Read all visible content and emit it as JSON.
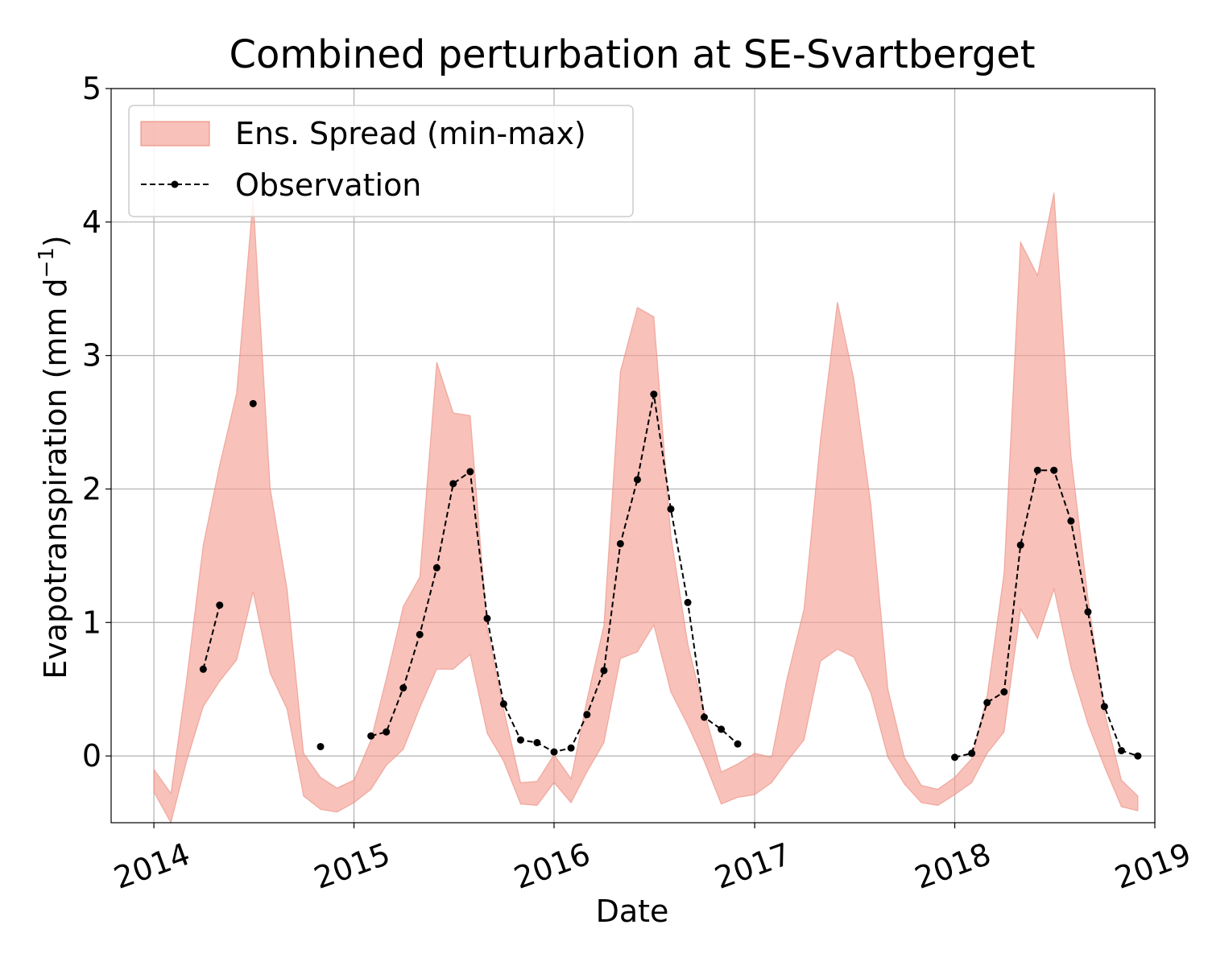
{
  "chart_data": {
    "type": "area",
    "title": "Combined perturbation at SE-Svartberget",
    "xlabel": "Date",
    "ylabel": "Evapotranspiration  (mm d",
    "ylabel_superscript": "−1",
    "ylabel_close": ")",
    "xlim": [
      "2013-10-15",
      "2019-01-01"
    ],
    "ylim": [
      -0.5,
      5
    ],
    "x_ticks": [
      "2014",
      "2015",
      "2016",
      "2017",
      "2018",
      "2019"
    ],
    "y_ticks": [
      0,
      1,
      2,
      3,
      4,
      5
    ],
    "grid": true,
    "legend_position": "upper-left",
    "colors": {
      "spread_fill": "#f4a093",
      "spread_edge": "#e8877a",
      "observation": "#000000"
    },
    "series": [
      {
        "name": "Ens. Spread (min-max)",
        "type": "band",
        "x": [
          "2014-01",
          "2014-02",
          "2014-03",
          "2014-04",
          "2014-05",
          "2014-06",
          "2014-07",
          "2014-08",
          "2014-09",
          "2014-10",
          "2014-11",
          "2014-12",
          "2015-01",
          "2015-02",
          "2015-03",
          "2015-04",
          "2015-05",
          "2015-06",
          "2015-07",
          "2015-08",
          "2015-09",
          "2015-10",
          "2015-11",
          "2015-12",
          "2016-01",
          "2016-02",
          "2016-03",
          "2016-04",
          "2016-05",
          "2016-06",
          "2016-07",
          "2016-08",
          "2016-09",
          "2016-10",
          "2016-11",
          "2016-12",
          "2017-01",
          "2017-02",
          "2017-03",
          "2017-04",
          "2017-05",
          "2017-06",
          "2017-07",
          "2017-08",
          "2017-09",
          "2017-10",
          "2017-11",
          "2017-12",
          "2018-01",
          "2018-02",
          "2018-03",
          "2018-04",
          "2018-05",
          "2018-06",
          "2018-07",
          "2018-08",
          "2018-09",
          "2018-10",
          "2018-11",
          "2018-12"
        ],
        "y_min": [
          -0.27,
          -0.5,
          -0.05,
          0.37,
          0.56,
          0.72,
          1.23,
          0.62,
          0.35,
          -0.3,
          -0.4,
          -0.42,
          -0.35,
          -0.25,
          -0.07,
          0.05,
          0.36,
          0.65,
          0.65,
          0.76,
          0.17,
          -0.04,
          -0.36,
          -0.37,
          -0.2,
          -0.35,
          -0.12,
          0.1,
          0.73,
          0.78,
          0.98,
          0.48,
          0.23,
          -0.04,
          -0.36,
          -0.31,
          -0.29,
          -0.2,
          -0.04,
          0.12,
          0.71,
          0.8,
          0.74,
          0.47,
          -0.01,
          -0.21,
          -0.35,
          -0.37,
          -0.29,
          -0.2,
          0.02,
          0.18,
          1.1,
          0.88,
          1.25,
          0.66,
          0.24,
          -0.08,
          -0.38,
          -0.41
        ],
        "y_max": [
          -0.1,
          -0.28,
          0.55,
          1.58,
          2.18,
          2.72,
          4.18,
          2.01,
          1.25,
          0.02,
          -0.16,
          -0.24,
          -0.18,
          0.12,
          0.58,
          1.12,
          1.34,
          2.95,
          2.57,
          2.55,
          0.96,
          0.35,
          -0.2,
          -0.19,
          0.01,
          -0.17,
          0.42,
          0.98,
          2.88,
          3.36,
          3.29,
          1.65,
          0.84,
          0.33,
          -0.12,
          -0.06,
          0.02,
          -0.01,
          0.58,
          1.1,
          2.37,
          3.4,
          2.82,
          1.88,
          0.5,
          -0.01,
          -0.22,
          -0.25,
          -0.16,
          -0.02,
          0.45,
          1.37,
          3.85,
          3.6,
          4.22,
          2.25,
          1.18,
          0.33,
          -0.18,
          -0.3
        ]
      },
      {
        "name": "Observation",
        "type": "line",
        "style": "dashed-dot-markers",
        "x": [
          "2014-04",
          "2014-05",
          "2014-06",
          "2014-07",
          "2014-08",
          "2014-09",
          "2014-10",
          "2014-11",
          "2014-12",
          "2015-01",
          "2015-02",
          "2015-03",
          "2015-04",
          "2015-05",
          "2015-06",
          "2015-07",
          "2015-08",
          "2015-09",
          "2015-10",
          "2015-11",
          "2015-12",
          "2016-01",
          "2016-02",
          "2016-03",
          "2016-04",
          "2016-05",
          "2016-06",
          "2016-07",
          "2016-08",
          "2016-09",
          "2016-10",
          "2016-11",
          "2016-12",
          "2017-01",
          "2017-02",
          "2017-03",
          "2017-04",
          "2017-05",
          "2017-06",
          "2017-07",
          "2017-08",
          "2017-09",
          "2017-10",
          "2017-11",
          "2017-12",
          "2018-01",
          "2018-02",
          "2018-03",
          "2018-04",
          "2018-05",
          "2018-06",
          "2018-07",
          "2018-08",
          "2018-09",
          "2018-10",
          "2018-11",
          "2018-12"
        ],
        "y": [
          0.65,
          1.13,
          null,
          2.64,
          null,
          null,
          null,
          0.07,
          null,
          null,
          0.15,
          0.18,
          0.51,
          0.91,
          1.41,
          2.04,
          2.13,
          1.03,
          0.39,
          0.12,
          0.1,
          0.03,
          0.06,
          0.31,
          0.64,
          1.59,
          2.07,
          2.71,
          1.85,
          1.15,
          0.29,
          0.2,
          0.09,
          null,
          null,
          null,
          null,
          null,
          null,
          null,
          null,
          null,
          null,
          null,
          null,
          -0.01,
          0.02,
          0.4,
          0.48,
          1.58,
          2.14,
          2.14,
          1.76,
          1.08,
          0.37,
          0.04,
          0.0
        ]
      }
    ]
  }
}
